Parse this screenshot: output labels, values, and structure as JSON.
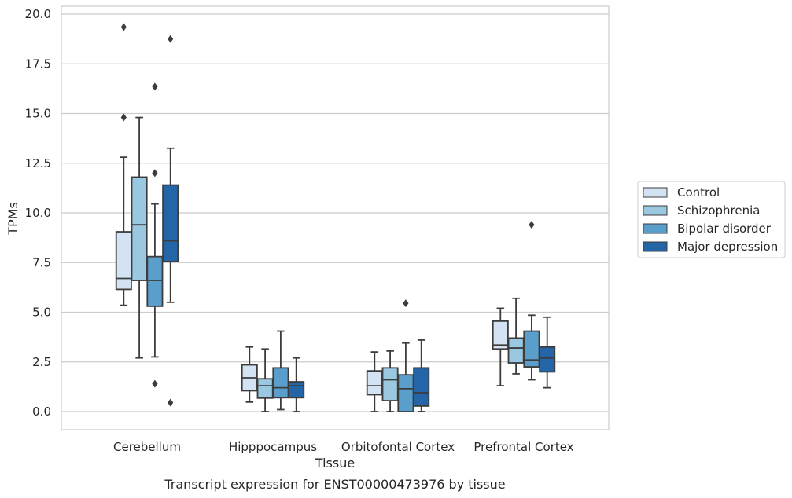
{
  "chart_data": {
    "type": "box",
    "title": "Transcript expression for ENST00000473976 by tissue",
    "xlabel": "Tissue",
    "ylabel": "TPMs",
    "ylim": [
      -0.9,
      20.4
    ],
    "yticks": [
      "0.0",
      "2.5",
      "5.0",
      "7.5",
      "10.0",
      "12.5",
      "15.0",
      "17.5",
      "20.0"
    ],
    "grid": "horizontal",
    "legend_position": "right",
    "categories": [
      "Cerebellum",
      "Hipppocampus",
      "Orbitofontal Cortex",
      "Prefrontal Cortex"
    ],
    "series": [
      {
        "name": "Control",
        "color": "#d3e3f3",
        "boxes": [
          {
            "whislo": 5.35,
            "q1": 6.15,
            "med": 6.7,
            "q3": 9.05,
            "whishi": 12.8,
            "fliers": [
              14.8,
              19.35
            ]
          },
          {
            "whislo": 0.48,
            "q1": 1.05,
            "med": 1.7,
            "q3": 2.35,
            "whishi": 3.25,
            "fliers": []
          },
          {
            "whislo": 0.0,
            "q1": 0.85,
            "med": 1.3,
            "q3": 2.05,
            "whishi": 3.0,
            "fliers": []
          },
          {
            "whislo": 1.3,
            "q1": 3.15,
            "med": 3.35,
            "q3": 4.55,
            "whishi": 5.2,
            "fliers": []
          }
        ]
      },
      {
        "name": "Schizophrenia",
        "color": "#9ac8e0",
        "boxes": [
          {
            "whislo": 2.7,
            "q1": 6.6,
            "med": 9.4,
            "q3": 11.8,
            "whishi": 14.8,
            "fliers": []
          },
          {
            "whislo": 0.0,
            "q1": 0.68,
            "med": 1.3,
            "q3": 1.65,
            "whishi": 3.15,
            "fliers": []
          },
          {
            "whislo": 0.0,
            "q1": 0.55,
            "med": 1.6,
            "q3": 2.2,
            "whishi": 3.05,
            "fliers": []
          },
          {
            "whislo": 1.9,
            "q1": 2.45,
            "med": 3.2,
            "q3": 3.7,
            "whishi": 5.7,
            "fliers": []
          }
        ]
      },
      {
        "name": "Bipolar disorder",
        "color": "#5a9ecc",
        "boxes": [
          {
            "whislo": 2.75,
            "q1": 5.3,
            "med": 6.6,
            "q3": 7.8,
            "whishi": 10.45,
            "fliers": [
              1.4,
              12.0,
              16.35
            ]
          },
          {
            "whislo": 0.1,
            "q1": 0.7,
            "med": 1.2,
            "q3": 2.2,
            "whishi": 4.05,
            "fliers": []
          },
          {
            "whislo": 0.0,
            "q1": 0.0,
            "med": 1.15,
            "q3": 1.85,
            "whishi": 3.45,
            "fliers": [
              5.45
            ]
          },
          {
            "whislo": 1.6,
            "q1": 2.25,
            "med": 2.6,
            "q3": 4.05,
            "whishi": 4.85,
            "fliers": [
              9.4
            ]
          }
        ]
      },
      {
        "name": "Major depression",
        "color": "#2365a6",
        "boxes": [
          {
            "whislo": 5.5,
            "q1": 7.55,
            "med": 8.6,
            "q3": 11.4,
            "whishi": 13.25,
            "fliers": [
              0.45,
              18.75
            ]
          },
          {
            "whislo": 0.0,
            "q1": 0.7,
            "med": 1.3,
            "q3": 1.5,
            "whishi": 2.7,
            "fliers": []
          },
          {
            "whislo": 0.0,
            "q1": 0.28,
            "med": 0.95,
            "q3": 2.2,
            "whishi": 3.6,
            "fliers": []
          },
          {
            "whislo": 1.2,
            "q1": 2.0,
            "med": 2.7,
            "q3": 3.25,
            "whishi": 4.75,
            "fliers": []
          }
        ]
      }
    ]
  }
}
